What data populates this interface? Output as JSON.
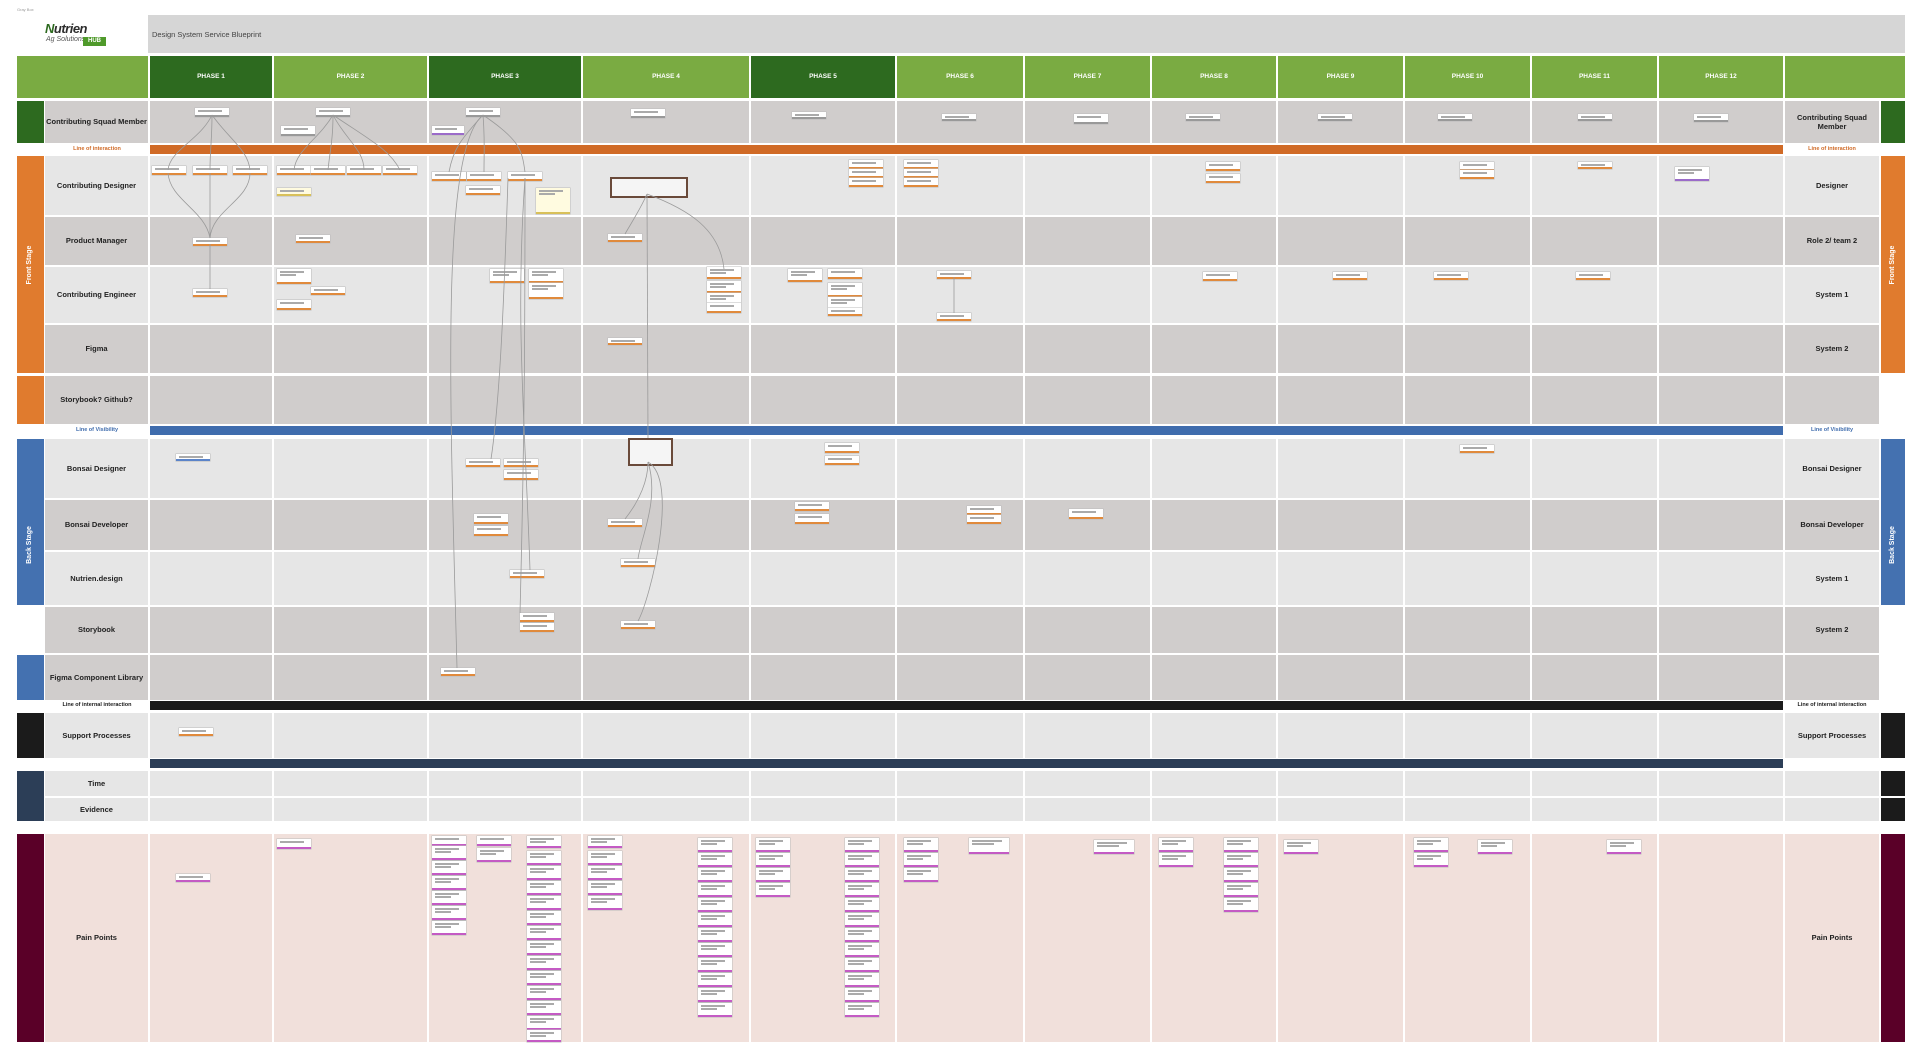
{
  "tiny_label": "Gray Box",
  "logo": {
    "brand_lead": "N",
    "brand_rest": "utrien",
    "sub": "Ag Solutions",
    "badge": "HUB"
  },
  "title": "Design System Service Blueprint",
  "colors": {
    "phase_dark": "#2d6a1f",
    "phase_light": "#7aab42",
    "front_stage": "#e07b2e",
    "back_stage": "#4471b0",
    "support": "#1b1b1b",
    "time_evidence": "#2c3e57",
    "pain": "#5a0028",
    "squad": "#2d6a1f",
    "interaction_line": "#d06a26",
    "visibility_line": "#3f6cad",
    "internal_line": "#1b1b1b",
    "navy_line": "#2c3e57"
  },
  "phases": [
    "PHASE 1",
    "PHASE 2",
    "PHASE 3",
    "PHASE 4",
    "PHASE 5",
    "PHASE 6",
    "PHASE 7",
    "PHASE 8",
    "PHASE 9",
    "PHASE 10",
    "PHASE 11",
    "PHASE 12"
  ],
  "lines": {
    "interaction": "Line of interaction",
    "visibility": "Line of Visibility",
    "internal": "Line of internal interaction"
  },
  "sections": {
    "front": "Front Stage",
    "back": "Back Stage"
  },
  "rows": [
    {
      "key": "squad",
      "left": "Contributing Squad Member",
      "right": "Contributing Squad Member"
    },
    {
      "key": "designer",
      "left": "Contributing Designer",
      "right": "Designer"
    },
    {
      "key": "pm",
      "left": "Product Manager",
      "right": "Role 2/ team 2"
    },
    {
      "key": "engineer",
      "left": "Contributing Engineer",
      "right": "System 1"
    },
    {
      "key": "figma",
      "left": "Figma",
      "right": "System 2"
    },
    {
      "key": "storybook_github",
      "left": "Storybook? Github?",
      "right": ""
    },
    {
      "key": "bonsai_designer",
      "left": "Bonsai Designer",
      "right": "Bonsai Designer"
    },
    {
      "key": "bonsai_developer",
      "left": "Bonsai Developer",
      "right": "Bonsai Developer"
    },
    {
      "key": "nutrien_design",
      "left": "Nutrien.design",
      "right": "System 1"
    },
    {
      "key": "storybook",
      "left": "Storybook",
      "right": "System 2"
    },
    {
      "key": "figma_library",
      "left": "Figma Component Library",
      "right": ""
    },
    {
      "key": "support",
      "left": "Support Processes",
      "right": "Support Processes"
    },
    {
      "key": "time",
      "left": "Time",
      "right": ""
    },
    {
      "key": "evidence",
      "left": "Evidence",
      "right": ""
    },
    {
      "key": "pain",
      "left": "Pain Points",
      "right": "Pain Points"
    }
  ]
}
